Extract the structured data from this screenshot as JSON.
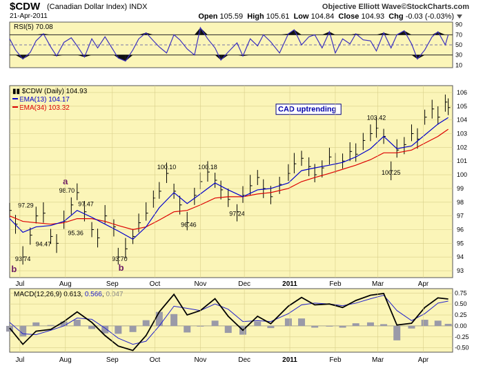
{
  "header": {
    "symbol": "$CDW",
    "name": "(Canadian Dollar Index)",
    "exchange": "INDX",
    "date": "21-Apr-2011",
    "brand": "Objective Elliott Wave©StockCharts.com",
    "open_label": "Open",
    "open": "105.59",
    "high_label": "High",
    "high": "105.61",
    "low_label": "Low",
    "low": "104.84",
    "close_label": "Close",
    "close": "104.93",
    "chg_label": "Chg",
    "chg": "-0.03 (-0.03%)"
  },
  "colors": {
    "panel_bg": "#fbf5b8",
    "price": "#000000",
    "ema13": "#0000cc",
    "ema34": "#dd0000",
    "rsi": "#3a2fbf",
    "macd": "#000000",
    "signal": "#2222cc",
    "histogram": "#9a9aa8",
    "wave_label": "#6b1a63"
  },
  "chart_data": [
    {
      "type": "line",
      "panel": "rsi",
      "legend": "RSI(5) 70.08",
      "ylim": [
        5,
        95
      ],
      "yticks": [
        10,
        30,
        50,
        70,
        90
      ],
      "reference_lines": [
        30,
        50,
        70
      ],
      "x": [
        "2011-06-27",
        "2011-07-01",
        "2011-07-06",
        "2011-07-11",
        "2011-07-15",
        "2011-07-20",
        "2011-07-25",
        "2011-07-29",
        "2011-08-03",
        "2011-08-08",
        "2011-08-12",
        "2011-08-17",
        "2011-08-22",
        "2011-08-26",
        "2011-08-31",
        "2011-09-06",
        "2011-09-09",
        "2011-09-14",
        "2011-09-19",
        "2011-09-23",
        "2011-09-28",
        "2011-10-03",
        "2011-10-07",
        "2011-10-12",
        "2011-10-17",
        "2011-10-21",
        "2011-10-26",
        "2011-10-31",
        "2011-11-04",
        "2011-11-09",
        "2011-11-14",
        "2011-11-18",
        "2011-11-23",
        "2011-11-29",
        "2011-12-03",
        "2011-12-08",
        "2011-12-13",
        "2011-12-17",
        "2011-12-22",
        "2011-12-28",
        "2012-01-03",
        "2012-01-07",
        "2012-01-12",
        "2012-01-17",
        "2012-01-21",
        "2012-01-26",
        "2012-01-31",
        "2012-02-04",
        "2012-02-09",
        "2012-02-14",
        "2012-02-18",
        "2012-02-23",
        "2012-02-28",
        "2012-03-03",
        "2012-03-08",
        "2012-03-13",
        "2012-03-17",
        "2012-03-22",
        "2012-03-27",
        "2012-03-31",
        "2012-04-05",
        "2012-04-10",
        "2012-04-14",
        "2012-04-19",
        "2012-04-21"
      ],
      "values": [
        62,
        40,
        22,
        35,
        58,
        72,
        46,
        28,
        55,
        64,
        48,
        26,
        62,
        44,
        66,
        38,
        24,
        18,
        40,
        62,
        74,
        58,
        46,
        34,
        70,
        60,
        42,
        30,
        84,
        62,
        44,
        20,
        36,
        54,
        28,
        62,
        48,
        70,
        56,
        34,
        72,
        80,
        50,
        66,
        70,
        44,
        76,
        34,
        62,
        52,
        72,
        60,
        58,
        38,
        74,
        44,
        70,
        78,
        52,
        22,
        40,
        66,
        76,
        50,
        70
      ]
    },
    {
      "type": "line",
      "panel": "price",
      "title": "$CDW (Daily) 104.93",
      "ylim": [
        92.5,
        106.5
      ],
      "yticks": [
        93,
        94,
        95,
        96,
        97,
        98,
        99,
        100,
        101,
        102,
        103,
        104,
        105,
        106
      ],
      "xticks": [
        "Jul",
        "Aug",
        "Sep",
        "Oct",
        "Nov",
        "Dec",
        "2011",
        "Feb",
        "Mar",
        "Apr"
      ],
      "series": [
        {
          "name": "$CDW (Daily)",
          "x": [
            "2011-06-27",
            "2011-07-01",
            "2011-07-06",
            "2011-07-11",
            "2011-07-15",
            "2011-07-20",
            "2011-07-25",
            "2011-07-29",
            "2011-08-03",
            "2011-08-08",
            "2011-08-12",
            "2011-08-17",
            "2011-08-22",
            "2011-08-26",
            "2011-08-31",
            "2011-09-06",
            "2011-09-09",
            "2011-09-14",
            "2011-09-19",
            "2011-09-23",
            "2011-09-28",
            "2011-10-03",
            "2011-10-07",
            "2011-10-12",
            "2011-10-17",
            "2011-10-21",
            "2011-10-26",
            "2011-10-31",
            "2011-11-04",
            "2011-11-09",
            "2011-11-14",
            "2011-11-18",
            "2011-11-23",
            "2011-11-29",
            "2011-12-03",
            "2011-12-08",
            "2011-12-13",
            "2011-12-17",
            "2011-12-22",
            "2011-12-28",
            "2012-01-03",
            "2012-01-07",
            "2012-01-12",
            "2012-01-17",
            "2012-01-21",
            "2012-01-26",
            "2012-01-31",
            "2012-02-04",
            "2012-02-09",
            "2012-02-14",
            "2012-02-18",
            "2012-02-23",
            "2012-02-28",
            "2012-03-03",
            "2012-03-08",
            "2012-03-13",
            "2012-03-17",
            "2012-03-22",
            "2012-03-27",
            "2012-03-31",
            "2012-04-05",
            "2012-04-10",
            "2012-04-14",
            "2012-04-19",
            "2012-04-21"
          ],
          "values": [
            97.4,
            96.4,
            94.0,
            95.6,
            97.0,
            97.2,
            95.5,
            95.0,
            96.6,
            97.8,
            98.7,
            97.3,
            96.0,
            95.4,
            97.0,
            96.2,
            94.0,
            94.6,
            95.5,
            96.5,
            97.2,
            98.3,
            98.8,
            100.1,
            98.8,
            97.8,
            96.5,
            98.5,
            99.5,
            100.2,
            99.6,
            98.9,
            98.2,
            97.3,
            98.5,
            99.2,
            99.8,
            99.0,
            98.4,
            99.3,
            100.1,
            100.8,
            101.2,
            100.6,
            100.0,
            100.5,
            101.3,
            100.8,
            101.0,
            101.7,
            101.5,
            102.5,
            103.0,
            103.4,
            102.8,
            100.3,
            101.8,
            102.2,
            103.0,
            102.6,
            104.2,
            104.8,
            104.2,
            105.3,
            104.9
          ]
        },
        {
          "name": "EMA(13) 104.17",
          "legend_value": "104.17",
          "x": [
            "2011-06-27",
            "2011-07-06",
            "2011-07-15",
            "2011-07-25",
            "2011-08-03",
            "2011-08-12",
            "2011-08-22",
            "2011-08-31",
            "2011-09-09",
            "2011-09-19",
            "2011-09-28",
            "2011-10-07",
            "2011-10-17",
            "2011-10-26",
            "2011-11-04",
            "2011-11-14",
            "2011-11-23",
            "2011-12-03",
            "2011-12-13",
            "2011-12-22",
            "2012-01-03",
            "2012-01-12",
            "2012-01-21",
            "2012-01-31",
            "2012-02-09",
            "2012-02-18",
            "2012-02-28",
            "2012-03-08",
            "2012-03-17",
            "2012-03-27",
            "2012-04-05",
            "2012-04-14",
            "2012-04-21"
          ],
          "values": [
            96.8,
            95.8,
            96.2,
            96.3,
            96.6,
            97.4,
            96.9,
            96.4,
            95.9,
            95.3,
            96.2,
            97.6,
            98.7,
            97.9,
            98.6,
            99.4,
            98.9,
            98.4,
            98.9,
            99.0,
            99.4,
            100.3,
            100.5,
            100.7,
            100.9,
            101.3,
            101.9,
            102.8,
            101.9,
            102.1,
            102.9,
            103.7,
            104.17
          ]
        },
        {
          "name": "EMA(34) 103.32",
          "legend_value": "103.32",
          "x": [
            "2011-06-27",
            "2011-07-06",
            "2011-07-15",
            "2011-07-25",
            "2011-08-03",
            "2011-08-12",
            "2011-08-22",
            "2011-08-31",
            "2011-09-09",
            "2011-09-19",
            "2011-09-28",
            "2011-10-07",
            "2011-10-17",
            "2011-10-26",
            "2011-11-04",
            "2011-11-14",
            "2011-11-23",
            "2011-12-03",
            "2011-12-13",
            "2011-12-22",
            "2012-01-03",
            "2012-01-12",
            "2012-01-21",
            "2012-01-31",
            "2012-02-09",
            "2012-02-18",
            "2012-02-28",
            "2012-03-08",
            "2012-03-17",
            "2012-03-27",
            "2012-04-05",
            "2012-04-14",
            "2012-04-21"
          ],
          "values": [
            97.0,
            96.6,
            96.5,
            96.4,
            96.5,
            96.8,
            96.8,
            96.6,
            96.3,
            96.0,
            96.2,
            96.7,
            97.3,
            97.4,
            97.8,
            98.3,
            98.4,
            98.4,
            98.6,
            98.7,
            99.0,
            99.5,
            99.8,
            100.1,
            100.4,
            100.7,
            101.1,
            101.6,
            101.6,
            101.8,
            102.3,
            102.8,
            103.32
          ]
        }
      ],
      "annotations": [
        {
          "text": "CAD uptrending",
          "x": "2011-12-27",
          "y": 104.6,
          "boxed": true
        },
        {
          "text": "a",
          "x": "2011-08-04",
          "y": 99.3,
          "role": "wave"
        },
        {
          "text": "b",
          "x": "2011-09-11",
          "y": 93.0,
          "role": "wave"
        },
        {
          "text": "b",
          "x": "2011-06-30",
          "y": 92.9,
          "role": "wave"
        },
        {
          "text": "98.70",
          "x": "2011-08-05",
          "y": 98.7
        },
        {
          "text": "97.29",
          "x": "2011-07-08",
          "y": 97.6
        },
        {
          "text": "97.47",
          "x": "2011-08-18",
          "y": 97.7
        },
        {
          "text": "94.47",
          "x": "2011-07-20",
          "y": 94.8
        },
        {
          "text": "95.36",
          "x": "2011-08-11",
          "y": 95.6
        },
        {
          "text": "93.74",
          "x": "2011-07-06",
          "y": 93.7
        },
        {
          "text": "93.70",
          "x": "2011-09-10",
          "y": 93.7
        },
        {
          "text": "100.10",
          "x": "2011-10-12",
          "y": 100.4
        },
        {
          "text": "100.18",
          "x": "2011-11-09",
          "y": 100.4
        },
        {
          "text": "96.46",
          "x": "2011-10-27",
          "y": 96.2
        },
        {
          "text": "97.24",
          "x": "2011-11-29",
          "y": 97.0
        },
        {
          "text": "103.42",
          "x": "2012-03-03",
          "y": 104.0
        },
        {
          "text": "100.25",
          "x": "2012-03-13",
          "y": 100.0
        }
      ]
    },
    {
      "type": "line",
      "panel": "macd",
      "legend": "MACD(12,26,9)",
      "legend_macd": "0.613",
      "legend_signal": "0.566",
      "legend_hist": "0.047",
      "ylim": [
        -0.6,
        0.85
      ],
      "yticks": [
        -0.5,
        -0.25,
        0.0,
        0.25,
        0.5,
        0.75
      ],
      "xticks": [
        "Jul",
        "Aug",
        "Sep",
        "Oct",
        "Nov",
        "Dec",
        "2011",
        "Feb",
        "Mar",
        "Apr"
      ],
      "series": [
        {
          "name": "MACD",
          "x": [
            "2011-06-27",
            "2011-07-06",
            "2011-07-15",
            "2011-07-25",
            "2011-08-03",
            "2011-08-12",
            "2011-08-22",
            "2011-08-31",
            "2011-09-09",
            "2011-09-19",
            "2011-09-28",
            "2011-10-07",
            "2011-10-17",
            "2011-10-26",
            "2011-11-04",
            "2011-11-14",
            "2011-11-23",
            "2011-12-03",
            "2011-12-13",
            "2011-12-22",
            "2012-01-03",
            "2012-01-12",
            "2012-01-21",
            "2012-01-31",
            "2012-02-09",
            "2012-02-18",
            "2012-02-28",
            "2012-03-08",
            "2012-03-17",
            "2012-03-27",
            "2012-04-05",
            "2012-04-14",
            "2012-04-21"
          ],
          "values": [
            -0.05,
            -0.42,
            -0.12,
            -0.08,
            0.1,
            0.32,
            0.08,
            -0.22,
            -0.46,
            -0.56,
            -0.22,
            0.32,
            0.72,
            0.25,
            0.35,
            0.62,
            0.22,
            -0.1,
            0.22,
            0.05,
            0.45,
            0.65,
            0.48,
            0.5,
            0.42,
            0.58,
            0.7,
            0.74,
            0.02,
            0.06,
            0.42,
            0.64,
            0.613
          ]
        },
        {
          "name": "Signal",
          "x": [
            "2011-06-27",
            "2011-07-06",
            "2011-07-15",
            "2011-07-25",
            "2011-08-03",
            "2011-08-12",
            "2011-08-22",
            "2011-08-31",
            "2011-09-09",
            "2011-09-19",
            "2011-09-28",
            "2011-10-07",
            "2011-10-17",
            "2011-10-26",
            "2011-11-04",
            "2011-11-14",
            "2011-11-23",
            "2011-12-03",
            "2011-12-13",
            "2011-12-22",
            "2012-01-03",
            "2012-01-12",
            "2012-01-21",
            "2012-01-31",
            "2012-02-09",
            "2012-02-18",
            "2012-02-28",
            "2012-03-08",
            "2012-03-17",
            "2012-03-27",
            "2012-04-05",
            "2012-04-14",
            "2012-04-21"
          ],
          "values": [
            0.08,
            -0.18,
            -0.2,
            -0.1,
            0.0,
            0.18,
            0.15,
            -0.05,
            -0.28,
            -0.42,
            -0.35,
            0.0,
            0.45,
            0.4,
            0.35,
            0.5,
            0.38,
            0.1,
            0.12,
            0.1,
            0.28,
            0.48,
            0.52,
            0.5,
            0.46,
            0.52,
            0.62,
            0.7,
            0.35,
            0.12,
            0.28,
            0.52,
            0.566
          ]
        },
        {
          "name": "Histogram",
          "x": [
            "2011-06-27",
            "2011-07-06",
            "2011-07-15",
            "2011-07-25",
            "2011-08-03",
            "2011-08-12",
            "2011-08-22",
            "2011-08-31",
            "2011-09-09",
            "2011-09-19",
            "2011-09-28",
            "2011-10-07",
            "2011-10-17",
            "2011-10-26",
            "2011-11-04",
            "2011-11-14",
            "2011-11-23",
            "2011-12-03",
            "2011-12-13",
            "2011-12-22",
            "2012-01-03",
            "2012-01-12",
            "2012-01-21",
            "2012-01-31",
            "2012-02-09",
            "2012-02-18",
            "2012-02-28",
            "2012-03-08",
            "2012-03-17",
            "2012-03-27",
            "2012-04-05",
            "2012-04-14",
            "2012-04-21"
          ],
          "values": [
            -0.13,
            -0.24,
            0.08,
            0.02,
            0.1,
            0.14,
            -0.07,
            -0.17,
            -0.18,
            -0.14,
            0.13,
            0.32,
            0.27,
            -0.15,
            0.0,
            0.12,
            -0.16,
            -0.2,
            0.1,
            -0.05,
            0.17,
            0.17,
            -0.04,
            0.0,
            -0.04,
            0.06,
            0.08,
            0.04,
            -0.33,
            -0.06,
            0.14,
            0.12,
            0.047
          ]
        }
      ]
    }
  ]
}
